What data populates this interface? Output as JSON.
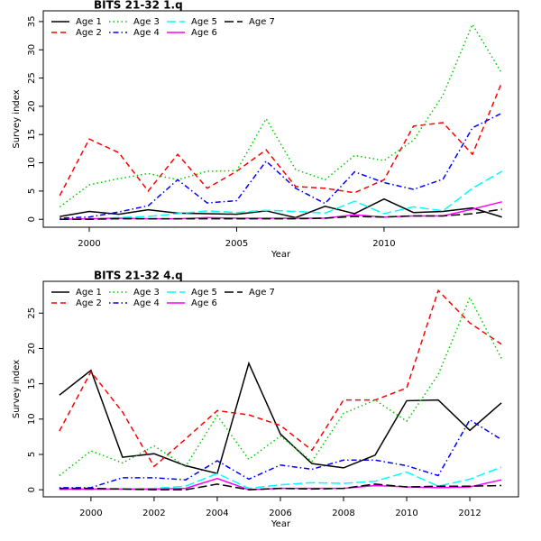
{
  "chart_data": [
    {
      "type": "line",
      "title": "BITS 21-32 1.q",
      "xlabel": "Year",
      "ylabel": "Survey index",
      "x": [
        1999,
        2000,
        2001,
        2002,
        2003,
        2004,
        2005,
        2006,
        2007,
        2008,
        2009,
        2010,
        2011,
        2012,
        2013,
        2014
      ],
      "xlim": [
        1998.44,
        2014.56
      ],
      "xticks": [
        2000,
        2005,
        2010
      ],
      "ylim": [
        -1.4,
        36.9
      ],
      "yticks": [
        0,
        5,
        10,
        15,
        20,
        25,
        30,
        35
      ],
      "series": [
        {
          "name": "Age 1",
          "color": "#000000",
          "dash": "solid",
          "values": [
            0.5,
            1.4,
            0.9,
            1.7,
            1.1,
            1.0,
            0.9,
            1.5,
            0.3,
            2.3,
            1.0,
            3.6,
            1.2,
            1.4,
            2.0,
            0.4
          ]
        },
        {
          "name": "Age 2",
          "color": "#ff0000",
          "dash": "dashed",
          "values": [
            4.2,
            14.2,
            11.8,
            5.0,
            11.5,
            5.5,
            8.5,
            12.3,
            5.8,
            5.5,
            4.7,
            7.0,
            16.5,
            17.1,
            11.5,
            24.3
          ]
        },
        {
          "name": "Age 3",
          "color": "#00cd00",
          "dash": "dotted",
          "values": [
            2.2,
            6.1,
            7.2,
            8.1,
            7.0,
            8.5,
            8.6,
            17.8,
            8.8,
            7.0,
            11.3,
            10.4,
            14.0,
            22.0,
            34.5,
            25.8
          ]
        },
        {
          "name": "Age 4",
          "color": "#0000ff",
          "dash": "dotdash",
          "values": [
            0.2,
            0.4,
            1.3,
            2.4,
            7.0,
            2.9,
            3.3,
            10.3,
            5.5,
            2.8,
            8.4,
            6.5,
            5.3,
            7.1,
            16.2,
            18.8
          ]
        },
        {
          "name": "Age 5",
          "color": "#00ffff",
          "dash": "longdash",
          "values": [
            0,
            0,
            0.3,
            0.5,
            1.0,
            1.5,
            1.2,
            1.6,
            1.4,
            1.1,
            3.2,
            1.0,
            2.2,
            1.5,
            5.5,
            8.5
          ]
        },
        {
          "name": "Age 6",
          "color": "#ff00ff",
          "dash": "solid",
          "values": [
            0,
            0.1,
            0.2,
            0.1,
            0.1,
            0.3,
            0.2,
            0.2,
            0.2,
            0.2,
            0.8,
            0.4,
            0.6,
            0.6,
            1.8,
            3.1
          ]
        },
        {
          "name": "Age 7",
          "color": "#000000",
          "dash": "longdash",
          "values": [
            0,
            0,
            0.1,
            0.1,
            0.1,
            0.1,
            0.1,
            0.1,
            0.1,
            0.2,
            0.5,
            0.4,
            0.6,
            0.6,
            1.0,
            1.8
          ]
        }
      ]
    },
    {
      "type": "line",
      "title": "BITS 21-32 4.q",
      "xlabel": "Year",
      "ylabel": "Survey index",
      "x": [
        1999,
        2000,
        2001,
        2002,
        2003,
        2004,
        2005,
        2006,
        2007,
        2008,
        2009,
        2010,
        2011,
        2012,
        2013
      ],
      "xlim": [
        1998.49,
        2013.54
      ],
      "xticks": [
        2000,
        2002,
        2004,
        2006,
        2008,
        2010,
        2012
      ],
      "ylim": [
        -1.0,
        29.5
      ],
      "yticks": [
        0,
        5,
        10,
        15,
        20,
        25
      ],
      "series": [
        {
          "name": "Age 1",
          "color": "#000000",
          "dash": "solid",
          "values": [
            13.4,
            16.9,
            4.6,
            5.1,
            3.4,
            2.3,
            17.9,
            7.9,
            3.7,
            3.1,
            4.9,
            12.6,
            12.7,
            8.4,
            12.3
          ]
        },
        {
          "name": "Age 2",
          "color": "#ff0000",
          "dash": "dashed",
          "values": [
            8.3,
            16.7,
            11.0,
            3.3,
            7.2,
            11.2,
            10.6,
            9.1,
            5.6,
            12.7,
            12.7,
            14.4,
            28.2,
            23.6,
            20.6
          ]
        },
        {
          "name": "Age 3",
          "color": "#00cd00",
          "dash": "dotted",
          "values": [
            2.0,
            5.5,
            3.8,
            6.2,
            3.3,
            10.5,
            4.3,
            7.6,
            4.0,
            10.8,
            12.7,
            9.7,
            16.3,
            27.2,
            18.6
          ]
        },
        {
          "name": "Age 4",
          "color": "#0000ff",
          "dash": "dotdash",
          "values": [
            0.3,
            0.3,
            1.7,
            1.7,
            1.4,
            4.1,
            1.5,
            3.5,
            2.9,
            4.2,
            4.2,
            3.4,
            2.0,
            9.9,
            7.1
          ]
        },
        {
          "name": "Age 5",
          "color": "#00ffff",
          "dash": "longdash",
          "values": [
            0,
            0,
            0.1,
            0.2,
            0.5,
            2.3,
            0.2,
            0.7,
            1.0,
            0.9,
            1.2,
            2.5,
            0.5,
            1.5,
            3.2
          ]
        },
        {
          "name": "Age 6",
          "color": "#ff00ff",
          "dash": "solid",
          "values": [
            0.1,
            0.1,
            0.1,
            0.1,
            0.2,
            1.6,
            0,
            0.2,
            0.2,
            0.2,
            0.6,
            0.4,
            0.3,
            0.4,
            1.4
          ]
        },
        {
          "name": "Age 7",
          "color": "#000000",
          "dash": "longdash",
          "values": [
            0.2,
            0.2,
            0.1,
            0,
            0,
            0.8,
            0,
            0.2,
            0.1,
            0.2,
            0.8,
            0.4,
            0.5,
            0.5,
            0.6
          ]
        }
      ]
    }
  ]
}
